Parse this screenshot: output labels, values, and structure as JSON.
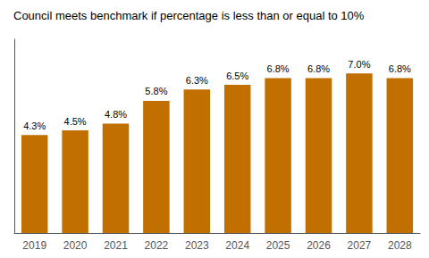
{
  "chart_data": {
    "type": "bar",
    "title": "Council meets benchmark if percentage is less than or equal to 10%",
    "categories": [
      "2019",
      "2020",
      "2021",
      "2022",
      "2023",
      "2024",
      "2025",
      "2026",
      "2027",
      "2028"
    ],
    "values": [
      4.3,
      4.5,
      4.8,
      5.8,
      6.3,
      6.5,
      6.8,
      6.8,
      7.0,
      6.8
    ],
    "value_labels": [
      "4.3%",
      "4.5%",
      "4.8%",
      "5.8%",
      "6.3%",
      "6.5%",
      "6.8%",
      "6.8%",
      "7.0%",
      "6.8%"
    ],
    "data_labels": true,
    "color": "#C17000",
    "ylim": [
      0,
      8.5
    ],
    "tick_labels": "x",
    "grid": false
  }
}
